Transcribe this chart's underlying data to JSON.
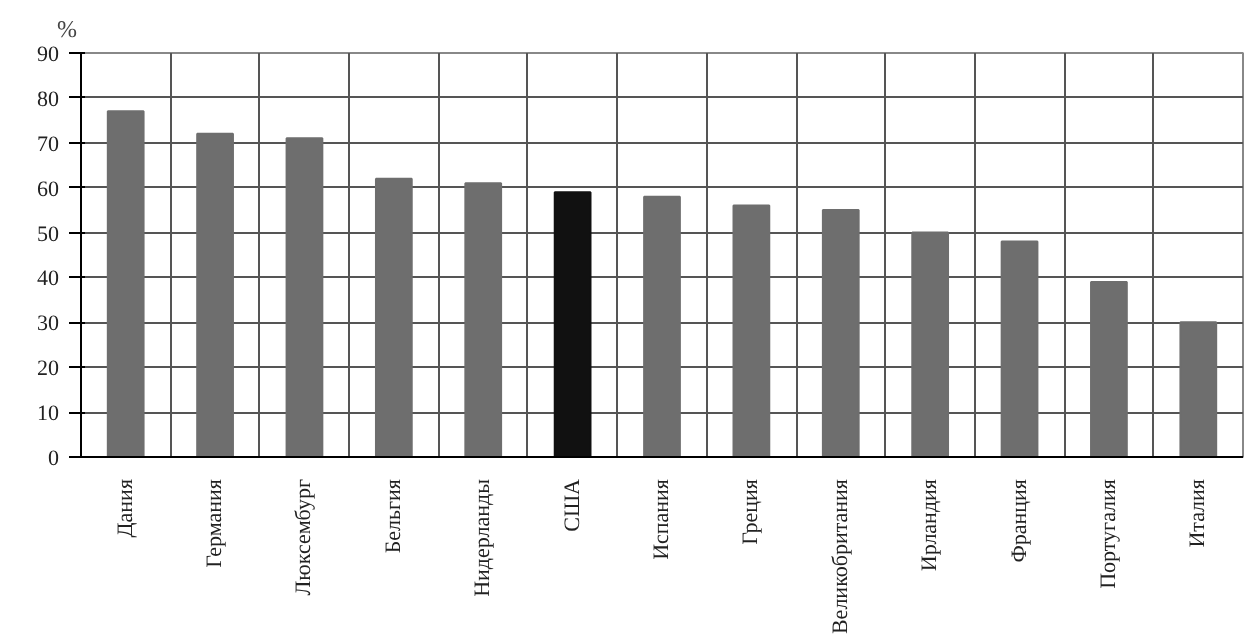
{
  "chart_data": {
    "type": "bar",
    "ylabel": "%",
    "categories": [
      "Дания",
      "Германия",
      "Люксембург",
      "Бельгия",
      "Нидерланды",
      "США",
      "Испания",
      "Греция",
      "Великобритания",
      "Ирландия",
      "Франция",
      "Португалия",
      "Италия"
    ],
    "values": [
      77,
      72,
      71,
      62,
      61,
      59,
      58,
      56,
      55,
      50,
      48,
      39,
      30
    ],
    "colors": [
      "#6e6e6e",
      "#6e6e6e",
      "#6e6e6e",
      "#6e6e6e",
      "#6e6e6e",
      "#111111",
      "#6e6e6e",
      "#6e6e6e",
      "#6e6e6e",
      "#6e6e6e",
      "#6e6e6e",
      "#6e6e6e",
      "#6e6e6e"
    ],
    "ylim": [
      0,
      90
    ],
    "yticks": [
      0,
      10,
      20,
      30,
      40,
      50,
      60,
      70,
      80,
      90
    ],
    "grid": true
  }
}
